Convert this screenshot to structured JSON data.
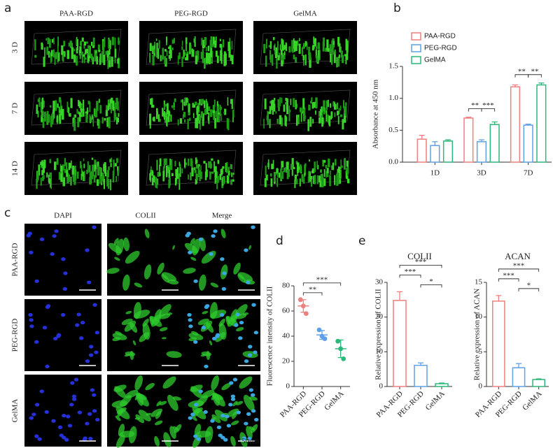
{
  "figure_a": {
    "label": "a",
    "columns": [
      "PAA-RGD",
      "PEG-RGD",
      "GelMA"
    ],
    "rows": [
      "3 D",
      "7 D",
      "14 D"
    ]
  },
  "figure_c": {
    "label": "c",
    "columns": [
      "DAPI",
      "COLII",
      "Merge"
    ],
    "column_colors": [
      "#1f1fd0",
      "#22b022",
      "#20c0c0"
    ],
    "rows": [
      "PAA-RGD",
      "PEG-RGD",
      "GelMA"
    ],
    "scale_bar": "50um"
  },
  "chart_data": [
    {
      "type": "grouped_bar",
      "panel_label": "b",
      "ylabel": "Absorbance at 450 nm",
      "categories": [
        "1D",
        "3D",
        "7D"
      ],
      "series": [
        {
          "name": "PAA-RGD",
          "color": "#f07f7f",
          "values": [
            0.36,
            0.69,
            1.18
          ],
          "errors": [
            0.06,
            0.015,
            0.03
          ]
        },
        {
          "name": "PEG-RGD",
          "color": "#5fa0e8",
          "values": [
            0.26,
            0.32,
            0.58
          ],
          "errors": [
            0.06,
            0.03,
            0.015
          ]
        },
        {
          "name": "GelMA",
          "color": "#2cb87a",
          "values": [
            0.33,
            0.59,
            1.21
          ],
          "errors": [
            0.02,
            0.04,
            0.03
          ]
        }
      ],
      "ylim": [
        0,
        1.5
      ],
      "yticks": [
        {
          "value": 0,
          "label": "0.0"
        },
        0.5,
        {
          "value": 1,
          "label": "1.0"
        },
        1.5
      ],
      "legend": "upper left",
      "significance": [
        {
          "category": "3D",
          "between": [
            "PAA-RGD",
            "PEG-RGD"
          ],
          "label": "**"
        },
        {
          "category": "3D",
          "between": [
            "PEG-RGD",
            "GelMA"
          ],
          "label": "***"
        },
        {
          "category": "7D",
          "between": [
            "PAA-RGD",
            "PEG-RGD"
          ],
          "label": "**"
        },
        {
          "category": "7D",
          "between": [
            "PEG-RGD",
            "GelMA"
          ],
          "label": "**"
        }
      ]
    },
    {
      "type": "dot",
      "panel_label": "d",
      "ylabel": "Fluorescence intensity of COLII",
      "categories": [
        "PAA-RGD",
        "PEG-RGD",
        "GelMA"
      ],
      "colors": [
        "#f07f7f",
        "#5fa0e8",
        "#2cb87a"
      ],
      "values": [
        64,
        41,
        30
      ],
      "errors": [
        5,
        3.5,
        7
      ],
      "points": [
        [
          69,
          64,
          58
        ],
        [
          45,
          40,
          38
        ],
        [
          36,
          30,
          22
        ]
      ],
      "ylim": [
        0,
        80
      ],
      "yticks": [
        0,
        20,
        40,
        60,
        80
      ],
      "significance": [
        {
          "between": [
            "PAA-RGD",
            "GelMA"
          ],
          "label": "***"
        },
        {
          "between": [
            "PAA-RGD",
            "PEG-RGD"
          ],
          "label": "**"
        }
      ]
    },
    {
      "type": "bar",
      "panel_label": "e",
      "title": "COLII",
      "ylabel": "Relative expression of COLII",
      "categories": [
        "PAA-RGD",
        "PEG-RGD",
        "GelMA"
      ],
      "colors": [
        "#f07f7f",
        "#5fa0e8",
        "#2cb87a"
      ],
      "values": [
        24.8,
        6.1,
        0.8
      ],
      "errors": [
        2.5,
        0.7,
        0.2
      ],
      "ylim": [
        0,
        30
      ],
      "yticks": [
        0,
        10,
        20,
        30
      ],
      "significance": [
        {
          "between": [
            "PAA-RGD",
            "GelMA"
          ],
          "label": "***"
        },
        {
          "between": [
            "PAA-RGD",
            "PEG-RGD"
          ],
          "label": "***"
        },
        {
          "between": [
            "PEG-RGD",
            "GelMA"
          ],
          "label": "*"
        }
      ]
    },
    {
      "type": "bar",
      "title": "ACAN",
      "ylabel": "Relative expression of ACAN",
      "categories": [
        "PAA-RGD",
        "PEG-RGD",
        "GelMA"
      ],
      "colors": [
        "#f07f7f",
        "#5fa0e8",
        "#2cb87a"
      ],
      "values": [
        12.3,
        2.7,
        1.0
      ],
      "errors": [
        0.8,
        0.6,
        0.1
      ],
      "ylim": [
        0,
        15
      ],
      "yticks": [
        0,
        5,
        10,
        15
      ],
      "significance": [
        {
          "between": [
            "PAA-RGD",
            "GelMA"
          ],
          "label": "***"
        },
        {
          "between": [
            "PAA-RGD",
            "PEG-RGD"
          ],
          "label": "***"
        },
        {
          "between": [
            "PEG-RGD",
            "GelMA"
          ],
          "label": "*"
        }
      ]
    }
  ]
}
